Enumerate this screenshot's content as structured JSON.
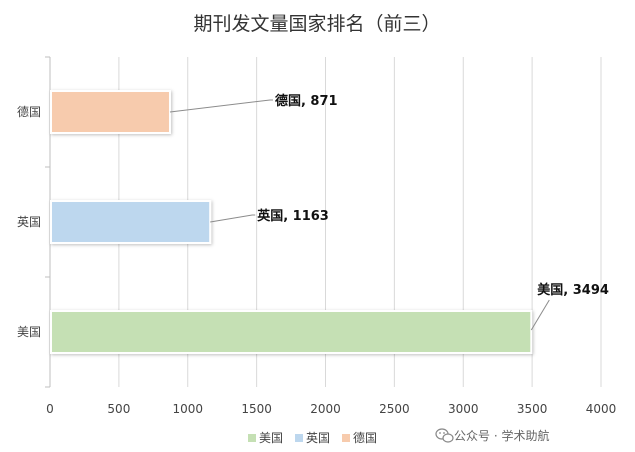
{
  "chart_data": {
    "type": "bar",
    "orientation": "horizontal",
    "title": "期刊发文量国家排名（前三）",
    "categories": [
      "德国",
      "英国",
      "美国"
    ],
    "values": [
      871,
      1163,
      3494
    ],
    "colors": [
      "#f7cbad",
      "#bdd7ee",
      "#c5e0b4"
    ],
    "data_labels": [
      "德国, 871",
      "英国, 1163",
      "美国, 3494"
    ],
    "xlim": [
      0,
      4000
    ],
    "xticks": [
      0,
      500,
      1000,
      1500,
      2000,
      2500,
      3000,
      3500,
      4000
    ],
    "grid": "vertical",
    "legend": {
      "position": "bottom",
      "items": [
        "美国",
        "英国",
        "德国"
      ]
    }
  },
  "watermark": "公众号 · 学术助航"
}
